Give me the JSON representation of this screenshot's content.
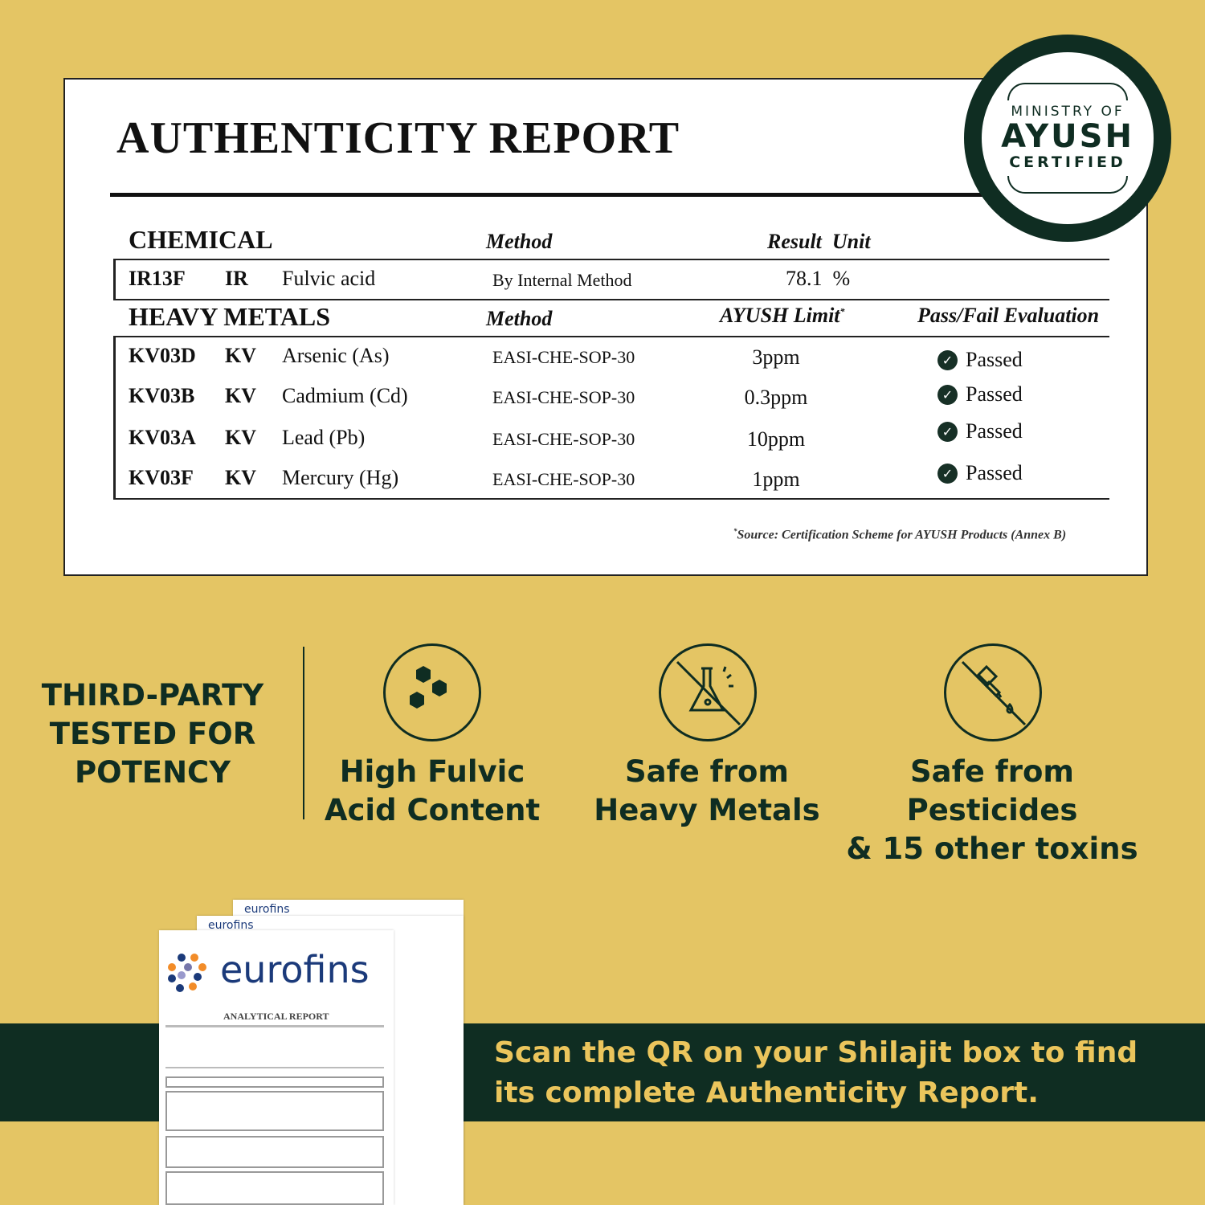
{
  "report": {
    "title": "AUTHENTICITY REPORT",
    "chemical": {
      "header": "CHEMICAL",
      "method_header": "Method",
      "result_header": "Result  Unit",
      "row": {
        "code": "IR13F",
        "type": "IR",
        "name": "Fulvic acid",
        "method": "By Internal Method",
        "result": "78.1  %"
      }
    },
    "heavy_metals": {
      "header": "HEAVY METALS",
      "method_header": "Method",
      "limit_header": "AYUSH Limit",
      "limit_mark": "*",
      "eval_header": "Pass/Fail Evaluation",
      "rows": [
        {
          "code": "KV03D",
          "type": "KV",
          "name": "Arsenic (As)",
          "method": "EASI-CHE-SOP-30",
          "limit": "3ppm",
          "status": "Passed"
        },
        {
          "code": "KV03B",
          "type": "KV",
          "name": "Cadmium (Cd)",
          "method": "EASI-CHE-SOP-30",
          "limit": "0.3ppm",
          "status": "Passed"
        },
        {
          "code": "KV03A",
          "type": "KV",
          "name": "Lead (Pb)",
          "method": "EASI-CHE-SOP-30",
          "limit": "10ppm",
          "status": "Passed"
        },
        {
          "code": "KV03F",
          "type": "KV",
          "name": "Mercury (Hg)",
          "method": "EASI-CHE-SOP-30",
          "limit": "1ppm",
          "status": "Passed"
        }
      ]
    },
    "footnote_mark": "*",
    "footnote": "Source: Certification Scheme for AYUSH Products (Annex B)"
  },
  "badge": {
    "line1": "MINISTRY OF",
    "line2": "AYUSH",
    "line3": "CERTIFIED"
  },
  "features": {
    "headline": [
      "THIRD-PARTY",
      "TESTED FOR",
      "POTENCY"
    ],
    "items": [
      {
        "icon": "hexagons-icon",
        "line1": "High Fulvic",
        "line2": "Acid Content"
      },
      {
        "icon": "flask-icon",
        "line1": "Safe from",
        "line2": "Heavy Metals"
      },
      {
        "icon": "dropper-icon",
        "line1": "Safe from Pesticides",
        "line2": "& 15 other toxins"
      }
    ]
  },
  "documents": {
    "brand": "eurofins",
    "doc_title": "ANALYTICAL REPORT"
  },
  "banner": {
    "line1": "Scan the QR on your Shilajit box to find",
    "line2": "its complete Authenticity Report."
  },
  "colors": {
    "background": "#E4C564",
    "dark_green": "#0F2D22",
    "banner_text": "#EBC55C",
    "eurofins_blue": "#1B3A7A",
    "eurofins_orange": "#F28C28"
  }
}
